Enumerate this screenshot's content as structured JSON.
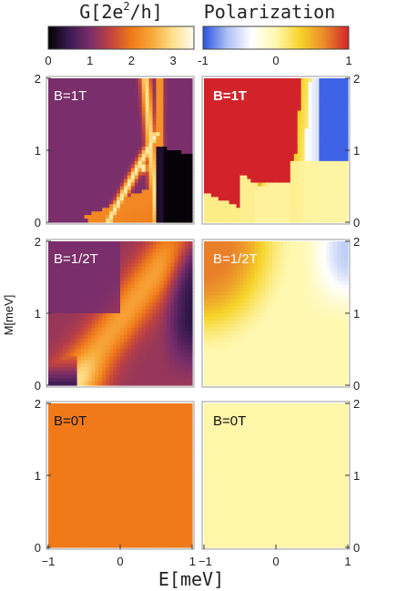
{
  "colorbar_left": {
    "title_main": "G[2e",
    "title_sup": "2",
    "title_end": "/h]",
    "ticks": [
      "0",
      "1",
      "2",
      "3"
    ],
    "range": [
      0,
      3.5
    ],
    "colors": [
      "#000000",
      "#3a1a52",
      "#7a2e6b",
      "#c2433f",
      "#f07a1a",
      "#f8aa3a",
      "#fde18e",
      "#fffbf0"
    ]
  },
  "colorbar_right": {
    "title": "Polarization",
    "ticks": [
      "-1",
      "0",
      "1"
    ],
    "range": [
      -1,
      1
    ],
    "colors": [
      "#2a52e0",
      "#aec1f4",
      "#ffffff",
      "#fff8b0",
      "#f6d42a",
      "#ea8a2a",
      "#d2232a"
    ]
  },
  "panels": {
    "row1_label": "B=1T",
    "row2_label": "B=1/2T",
    "row3_label": "B=0T"
  },
  "axes": {
    "ylabel": "M[meV]",
    "xlabel_main": "E",
    "xlabel_unit": "[meV]",
    "y_ticks": [
      "0",
      "1",
      "2"
    ],
    "x_ticks_left": [
      "-1",
      "0",
      "1"
    ],
    "x_ticks_right": [
      "-1",
      "0",
      "1"
    ]
  },
  "chart_data": [
    {
      "type": "heatmap",
      "title": "B=1T",
      "quantity": "G [2e^2/h]",
      "xlabel": "E[meV]",
      "ylabel": "M[meV]",
      "xlim": [
        -1,
        1
      ],
      "ylim": [
        0,
        2
      ],
      "zlim": [
        0,
        3.5
      ],
      "description_points": {
        "background": 1.0,
        "lower_band": 2.0,
        "vertical_stripe": 3.0,
        "lower_right_corner": 0.0
      }
    },
    {
      "type": "heatmap",
      "title": "B=1T",
      "quantity": "Polarization",
      "xlim": [
        -1,
        1
      ],
      "ylim": [
        0,
        2
      ],
      "zlim": [
        -1,
        1
      ],
      "description_points": {
        "upper_left": 1.0,
        "right_edge": -0.9,
        "bottom": 0.05
      }
    },
    {
      "type": "heatmap",
      "title": "B=1/2T",
      "quantity": "G [2e^2/h]",
      "xlim": [
        -1,
        1
      ],
      "ylim": [
        0,
        2
      ],
      "zlim": [
        0,
        3.5
      ],
      "description_points": {
        "upper_left": 1.0,
        "diagonal_band": 2.3,
        "right_edge": 0.4
      }
    },
    {
      "type": "heatmap",
      "title": "B=1/2T",
      "quantity": "Polarization",
      "xlim": [
        -1,
        1
      ],
      "ylim": [
        0,
        2
      ],
      "zlim": [
        -1,
        1
      ],
      "description_points": {
        "upper_left": 0.6,
        "right_edge": -0.5,
        "bottom": 0.05
      }
    },
    {
      "type": "heatmap",
      "title": "B=0T",
      "quantity": "G [2e^2/h]",
      "xlim": [
        -1,
        1
      ],
      "ylim": [
        0,
        2
      ],
      "zlim": [
        0,
        3.5
      ],
      "description_points": {
        "everywhere": 2.0
      }
    },
    {
      "type": "heatmap",
      "title": "B=0T",
      "quantity": "Polarization",
      "xlim": [
        -1,
        1
      ],
      "ylim": [
        0,
        2
      ],
      "zlim": [
        -1,
        1
      ],
      "description_points": {
        "everywhere": 0.02
      }
    }
  ]
}
